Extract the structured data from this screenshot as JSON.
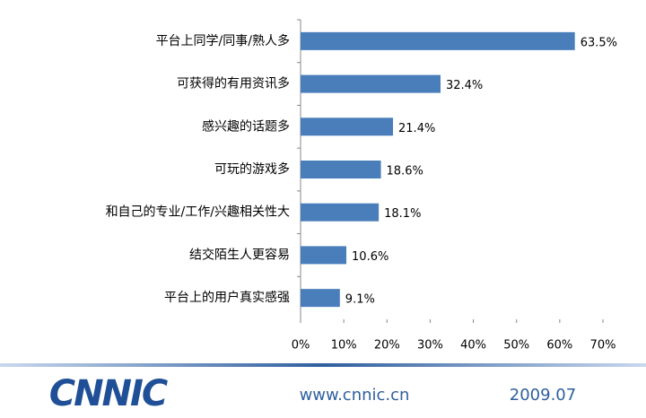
{
  "chart_data": {
    "type": "barh",
    "categories": [
      "平台上同学/同事/熟人多",
      "可获得的有用资讯多",
      "感兴趣的话题多",
      "可玩的游戏多",
      "和自己的专业/工作/兴趣相关性大",
      "结交陌生人更容易",
      "平台上的用户真实感强"
    ],
    "values": [
      63.5,
      32.4,
      21.4,
      18.6,
      18.1,
      10.6,
      9.1
    ],
    "value_labels": [
      "63.5%",
      "32.4%",
      "21.4%",
      "18.6%",
      "18.1%",
      "10.6%",
      "9.1%"
    ],
    "color": "#4a7ebb",
    "xlim": [
      0,
      70
    ],
    "xticks": [
      {
        "value": 0,
        "label": "0%"
      },
      {
        "value": 10,
        "label": "10%"
      },
      {
        "value": 20,
        "label": "20%"
      },
      {
        "value": 30,
        "label": "30%"
      },
      {
        "value": 40,
        "label": "40%"
      },
      {
        "value": 50,
        "label": "50%"
      },
      {
        "value": 60,
        "label": "60%"
      },
      {
        "value": 70,
        "label": "70%"
      }
    ],
    "grid": false
  },
  "footer": {
    "logo": "CNNIC",
    "url": "www.cnnic.cn",
    "date": "2009.07"
  }
}
